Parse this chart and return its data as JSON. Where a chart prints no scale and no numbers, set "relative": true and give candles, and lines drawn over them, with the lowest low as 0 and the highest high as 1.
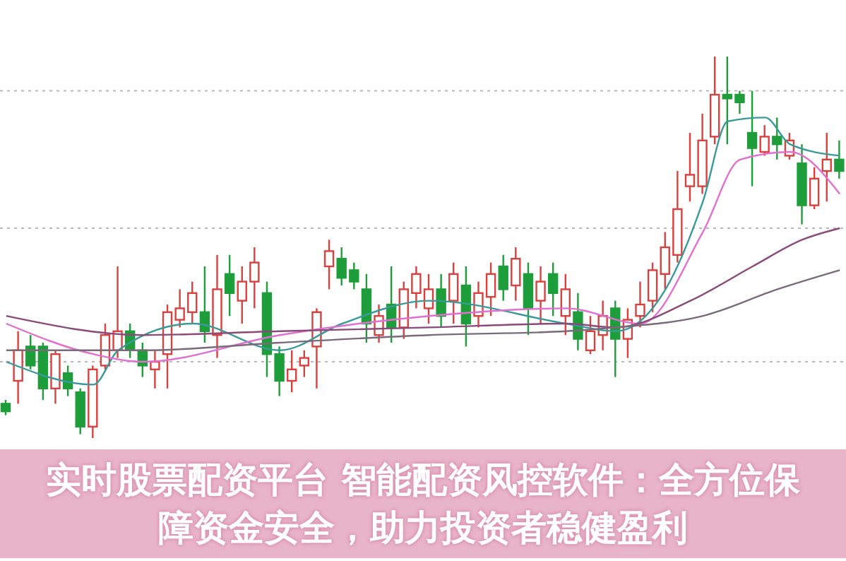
{
  "chart_data": {
    "type": "candlestick",
    "title": "实时股票配资平台 智能配资风控软件：全方位保障资金安全，助力投资者稳健盈利",
    "relative": true,
    "grid": "y",
    "categories": [
      null,
      null,
      null,
      null,
      null,
      null,
      null,
      null,
      null,
      null,
      null,
      null,
      null,
      null,
      null,
      null,
      null,
      null,
      null,
      null,
      null,
      null,
      null,
      null,
      null,
      null,
      null,
      null,
      null,
      null,
      null,
      null,
      null,
      null,
      null,
      null,
      null,
      null,
      null,
      null,
      null,
      null,
      null,
      null,
      null,
      null,
      null,
      null,
      null,
      null,
      null,
      null,
      null,
      null,
      null,
      null,
      null,
      null,
      null,
      null,
      null,
      null,
      null,
      null,
      null,
      null,
      null,
      null
    ],
    "ohlc": [
      [
        0.09,
        0.1,
        0.06,
        0.07
      ],
      [
        0.15,
        0.28,
        0.09,
        0.23
      ],
      [
        0.24,
        0.27,
        0.18,
        0.19
      ],
      [
        0.24,
        0.25,
        0.1,
        0.13
      ],
      [
        0.13,
        0.23,
        0.09,
        0.22
      ],
      [
        0.17,
        0.19,
        0.11,
        0.13
      ],
      [
        0.12,
        0.13,
        0.01,
        0.03
      ],
      [
        0.03,
        0.19,
        0.0,
        0.18
      ],
      [
        0.19,
        0.3,
        0.18,
        0.27
      ],
      [
        0.23,
        0.45,
        0.21,
        0.28
      ],
      [
        0.28,
        0.3,
        0.21,
        0.23
      ],
      [
        0.23,
        0.25,
        0.16,
        0.19
      ],
      [
        0.18,
        0.23,
        0.13,
        0.2
      ],
      [
        0.22,
        0.35,
        0.13,
        0.33
      ],
      [
        0.31,
        0.39,
        0.29,
        0.34
      ],
      [
        0.33,
        0.41,
        0.3,
        0.38
      ],
      [
        0.33,
        0.45,
        0.25,
        0.28
      ],
      [
        0.27,
        0.48,
        0.21,
        0.39
      ],
      [
        0.43,
        0.48,
        0.32,
        0.38
      ],
      [
        0.36,
        0.45,
        0.3,
        0.41
      ],
      [
        0.41,
        0.5,
        0.34,
        0.46
      ],
      [
        0.38,
        0.41,
        0.16,
        0.22
      ],
      [
        0.22,
        0.24,
        0.11,
        0.15
      ],
      [
        0.15,
        0.23,
        0.12,
        0.18
      ],
      [
        0.19,
        0.23,
        0.16,
        0.21
      ],
      [
        0.24,
        0.34,
        0.13,
        0.33
      ],
      [
        0.45,
        0.52,
        0.39,
        0.49
      ],
      [
        0.47,
        0.5,
        0.4,
        0.42
      ],
      [
        0.44,
        0.46,
        0.39,
        0.41
      ],
      [
        0.39,
        0.43,
        0.25,
        0.3
      ],
      [
        0.27,
        0.35,
        0.25,
        0.32
      ],
      [
        0.35,
        0.45,
        0.25,
        0.29
      ],
      [
        0.29,
        0.41,
        0.26,
        0.39
      ],
      [
        0.38,
        0.45,
        0.34,
        0.43
      ],
      [
        0.34,
        0.43,
        0.3,
        0.39
      ],
      [
        0.39,
        0.43,
        0.29,
        0.32
      ],
      [
        0.36,
        0.46,
        0.3,
        0.43
      ],
      [
        0.4,
        0.45,
        0.24,
        0.3
      ],
      [
        0.32,
        0.41,
        0.29,
        0.38
      ],
      [
        0.37,
        0.46,
        0.32,
        0.43
      ],
      [
        0.45,
        0.48,
        0.36,
        0.39
      ],
      [
        0.4,
        0.5,
        0.36,
        0.47
      ],
      [
        0.43,
        0.46,
        0.27,
        0.34
      ],
      [
        0.36,
        0.45,
        0.3,
        0.41
      ],
      [
        0.43,
        0.46,
        0.32,
        0.38
      ],
      [
        0.32,
        0.43,
        0.27,
        0.39
      ],
      [
        0.33,
        0.38,
        0.23,
        0.26
      ],
      [
        0.23,
        0.32,
        0.22,
        0.28
      ],
      [
        0.27,
        0.36,
        0.23,
        0.32
      ],
      [
        0.34,
        0.36,
        0.16,
        0.26
      ],
      [
        0.26,
        0.34,
        0.21,
        0.31
      ],
      [
        0.32,
        0.41,
        0.29,
        0.35
      ],
      [
        0.36,
        0.46,
        0.33,
        0.44
      ],
      [
        0.43,
        0.54,
        0.39,
        0.5
      ],
      [
        0.48,
        0.7,
        0.46,
        0.6
      ],
      [
        0.66,
        0.8,
        0.62,
        0.69
      ],
      [
        0.66,
        0.85,
        0.64,
        0.78
      ],
      [
        0.79,
        1.0,
        0.77,
        0.9
      ],
      [
        0.9,
        1.0,
        0.77,
        0.89
      ],
      [
        0.9,
        0.91,
        0.85,
        0.88
      ],
      [
        0.8,
        0.91,
        0.66,
        0.76
      ],
      [
        0.75,
        0.82,
        0.74,
        0.79
      ],
      [
        0.79,
        0.84,
        0.73,
        0.77
      ],
      [
        0.74,
        0.8,
        0.73,
        0.78
      ],
      [
        0.72,
        0.77,
        0.56,
        0.61
      ],
      [
        0.61,
        0.71,
        0.6,
        0.68
      ],
      [
        0.7,
        0.8,
        0.62,
        0.73
      ],
      [
        0.73,
        0.78,
        0.68,
        0.7
      ]
    ],
    "colors": [
      "#1e9e3a",
      "#d9413f",
      "#1e9e3a",
      "#1e9e3a",
      "#d9413f",
      "#1e9e3a",
      "#1e9e3a",
      "#d9413f",
      "#d9413f",
      "#d9413f",
      "#1e9e3a",
      "#1e9e3a",
      "#d9413f",
      "#d9413f",
      "#d9413f",
      "#d9413f",
      "#1e9e3a",
      "#d9413f",
      "#1e9e3a",
      "#d9413f",
      "#d9413f",
      "#1e9e3a",
      "#1e9e3a",
      "#d9413f",
      "#d9413f",
      "#d9413f",
      "#d9413f",
      "#1e9e3a",
      "#1e9e3a",
      "#1e9e3a",
      "#d9413f",
      "#1e9e3a",
      "#d9413f",
      "#d9413f",
      "#d9413f",
      "#1e9e3a",
      "#d9413f",
      "#1e9e3a",
      "#d9413f",
      "#d9413f",
      "#1e9e3a",
      "#d9413f",
      "#1e9e3a",
      "#d9413f",
      "#1e9e3a",
      "#d9413f",
      "#1e9e3a",
      "#d9413f",
      "#d9413f",
      "#1e9e3a",
      "#d9413f",
      "#d9413f",
      "#d9413f",
      "#d9413f",
      "#d9413f",
      "#d9413f",
      "#d9413f",
      "#d9413f",
      "#1e9e3a",
      "#1e9e3a",
      "#1e9e3a",
      "#d9413f",
      "#1e9e3a",
      "#d9413f",
      "#1e9e3a",
      "#d9413f",
      "#d9413f",
      "#1e9e3a"
    ],
    "series": [
      {
        "type": "line",
        "color": "#3a9a9a",
        "values": [
          0.2,
          null,
          null,
          null,
          null,
          null,
          null,
          0.14,
          null,
          0.23,
          null,
          null,
          null,
          null,
          null,
          0.3,
          null,
          null,
          null,
          null,
          null,
          null,
          0.23,
          null,
          null,
          null,
          null,
          0.3,
          null,
          null,
          null,
          null,
          null,
          null,
          0.36,
          null,
          null,
          null,
          null,
          null,
          null,
          null,
          null,
          null,
          null,
          0.3,
          null,
          null,
          null,
          0.28,
          null,
          null,
          null,
          0.39,
          null,
          null,
          0.62,
          null,
          0.83,
          null,
          null,
          0.84,
          null,
          0.77,
          null,
          null,
          null,
          0.74
        ]
      },
      {
        "type": "line",
        "color": "#e070d0",
        "values": [
          0.3,
          null,
          null,
          null,
          null,
          null,
          null,
          0.22,
          null,
          null,
          null,
          0.2,
          null,
          null,
          null,
          null,
          null,
          null,
          null,
          null,
          null,
          null,
          0.27,
          null,
          null,
          null,
          null,
          null,
          null,
          null,
          null,
          null,
          null,
          null,
          0.32,
          null,
          null,
          null,
          null,
          null,
          null,
          null,
          null,
          null,
          null,
          0.34,
          null,
          null,
          null,
          null,
          null,
          0.3,
          null,
          null,
          null,
          null,
          0.54,
          null,
          null,
          0.73,
          null,
          null,
          null,
          0.75,
          null,
          null,
          null,
          0.64
        ]
      },
      {
        "type": "line",
        "color": "#8a4a7a",
        "values": [
          0.32,
          null,
          null,
          null,
          null,
          null,
          null,
          null,
          null,
          null,
          null,
          0.27,
          null,
          null,
          null,
          null,
          null,
          null,
          null,
          null,
          null,
          null,
          0.28,
          null,
          null,
          null,
          null,
          null,
          null,
          null,
          null,
          null,
          null,
          null,
          0.29,
          null,
          null,
          null,
          null,
          null,
          null,
          null,
          null,
          null,
          null,
          0.3,
          null,
          null,
          null,
          0.29,
          null,
          null,
          null,
          null,
          null,
          0.36,
          null,
          null,
          null,
          null,
          0.45,
          null,
          null,
          null,
          0.52,
          null,
          null,
          0.55
        ]
      },
      {
        "type": "line",
        "color": "#7a6a7a",
        "values": [
          0.23,
          null,
          null,
          null,
          null,
          null,
          null,
          null,
          null,
          null,
          null,
          0.23,
          null,
          null,
          null,
          null,
          null,
          null,
          null,
          null,
          null,
          null,
          0.25,
          null,
          null,
          null,
          null,
          null,
          null,
          null,
          null,
          null,
          null,
          null,
          0.27,
          null,
          null,
          null,
          null,
          null,
          null,
          null,
          null,
          null,
          null,
          0.28,
          null,
          null,
          null,
          0.29,
          null,
          null,
          null,
          null,
          null,
          null,
          0.32,
          null,
          null,
          null,
          null,
          null,
          0.39,
          null,
          null,
          null,
          null,
          0.44
        ]
      }
    ]
  }
}
